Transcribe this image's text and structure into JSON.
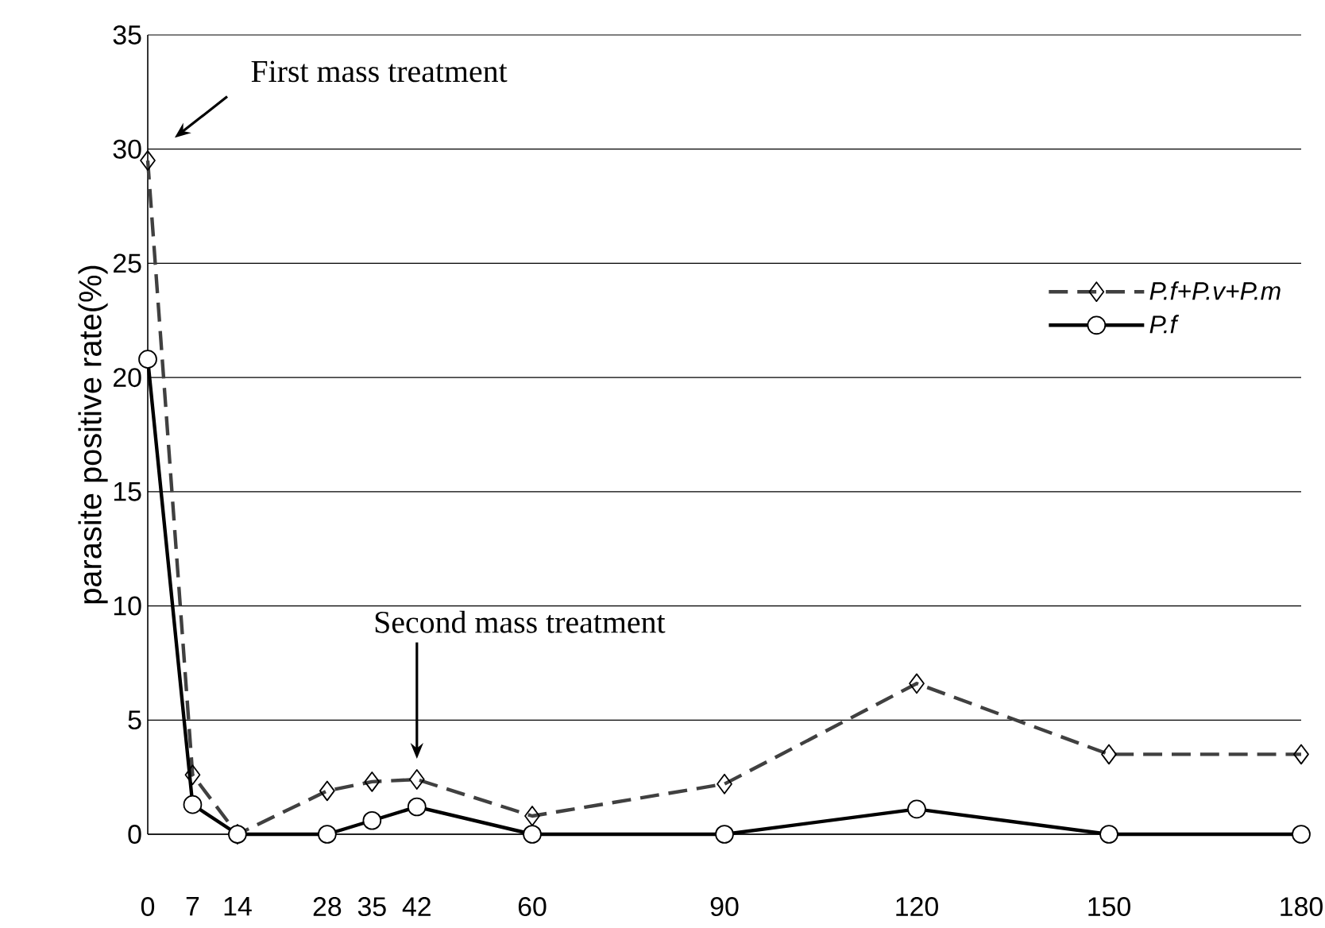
{
  "chart_data": {
    "type": "line",
    "ylabel": "parasite positive rate(%)",
    "x": [
      0,
      7,
      14,
      28,
      35,
      42,
      60,
      90,
      120,
      150,
      180
    ],
    "xlim": [
      0,
      180
    ],
    "xticks": [
      0,
      7,
      14,
      28,
      35,
      42,
      60,
      90,
      120,
      150,
      180
    ],
    "ylim": [
      0,
      35
    ],
    "yticks": [
      0,
      5,
      10,
      15,
      20,
      25,
      30,
      35
    ],
    "grid": "y",
    "legend": "right",
    "series": [
      {
        "name": "P.f+P.v+P.m",
        "color": "#404040",
        "line_style": "dashed",
        "marker": "diamond",
        "values": [
          29.5,
          2.6,
          0,
          1.9,
          2.3,
          2.4,
          0.8,
          2.2,
          6.6,
          3.5,
          3.5
        ]
      },
      {
        "name": "P.f",
        "color": "#000000",
        "line_style": "solid",
        "marker": "circle",
        "values": [
          20.8,
          1.3,
          0,
          0,
          0.6,
          1.2,
          0,
          0,
          1.1,
          0,
          0
        ]
      }
    ],
    "annotations": [
      "First mass treatment",
      "Second mass treatment"
    ]
  }
}
